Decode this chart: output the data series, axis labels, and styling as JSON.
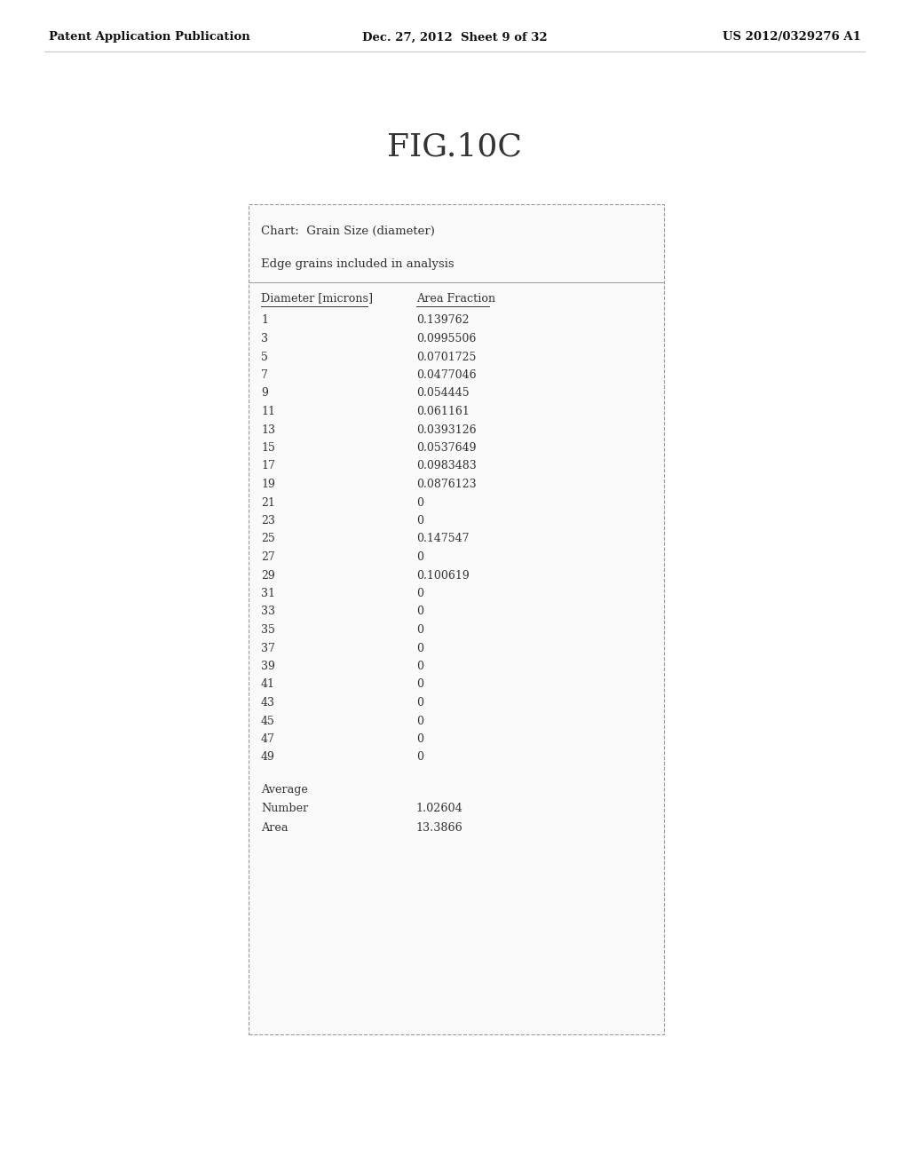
{
  "page_header_left": "Patent Application Publication",
  "page_header_center": "Dec. 27, 2012  Sheet 9 of 32",
  "page_header_right": "US 2012/0329276 A1",
  "figure_title": "FIG.10C",
  "chart_label": "Chart:  Grain Size (diameter)",
  "edge_label": "Edge grains included in analysis",
  "col1_header": "Diameter [microns]",
  "col2_header": "Area Fraction",
  "rows": [
    [
      "1",
      "0.139762"
    ],
    [
      "3",
      "0.0995506"
    ],
    [
      "5",
      "0.0701725"
    ],
    [
      "7",
      "0.0477046"
    ],
    [
      "9",
      "0.054445"
    ],
    [
      "11",
      "0.061161"
    ],
    [
      "13",
      "0.0393126"
    ],
    [
      "15",
      "0.0537649"
    ],
    [
      "17",
      "0.0983483"
    ],
    [
      "19",
      "0.0876123"
    ],
    [
      "21",
      "0"
    ],
    [
      "23",
      "0"
    ],
    [
      "25",
      "0.147547"
    ],
    [
      "27",
      "0"
    ],
    [
      "29",
      "0.100619"
    ],
    [
      "31",
      "0"
    ],
    [
      "33",
      "0"
    ],
    [
      "35",
      "0"
    ],
    [
      "37",
      "0"
    ],
    [
      "39",
      "0"
    ],
    [
      "41",
      "0"
    ],
    [
      "43",
      "0"
    ],
    [
      "45",
      "0"
    ],
    [
      "47",
      "0"
    ],
    [
      "49",
      "0"
    ]
  ],
  "average_label": "Average",
  "number_label": "Number",
  "number_value": "1.02604",
  "area_label": "Area",
  "area_value": "13.3866",
  "bg_color": "#ffffff",
  "text_color": "#333333",
  "border_color": "#999999",
  "header_color": "#111111"
}
